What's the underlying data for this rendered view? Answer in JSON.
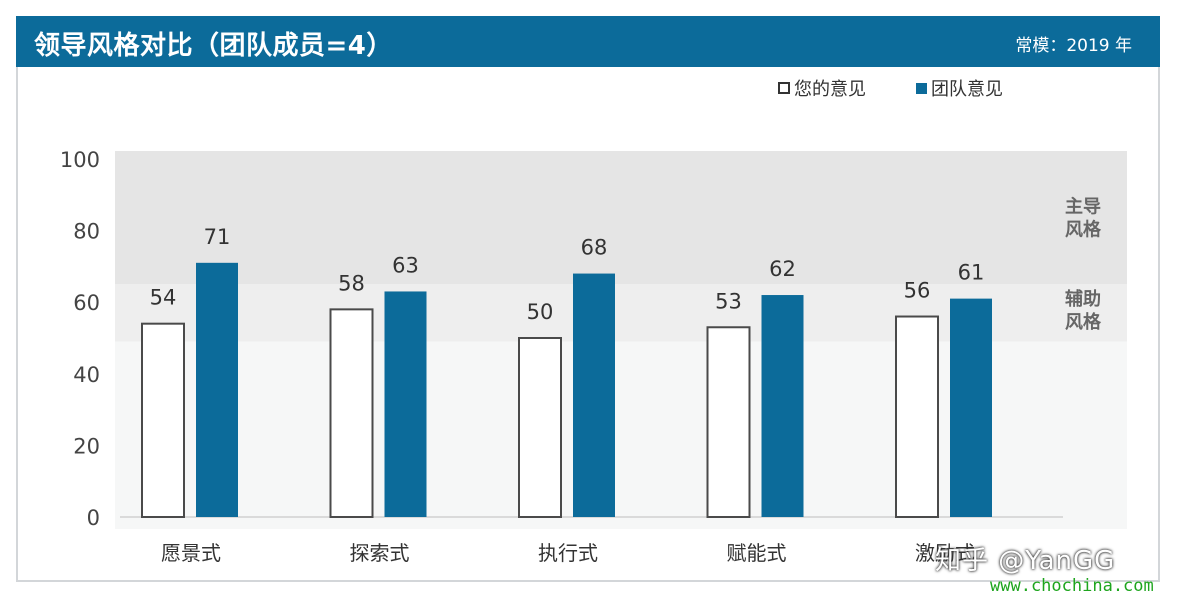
{
  "header": {
    "title": "领导风格对比（团队成员=4）",
    "norm": "常模：2019 年"
  },
  "legend": [
    {
      "label": "您的意见",
      "color": "#ffffff"
    },
    {
      "label": "团队意见",
      "color": "#0c6b9a"
    }
  ],
  "bands": [
    {
      "label_line1": "主导",
      "label_line2": "风格",
      "from": 65,
      "to": 100,
      "color": "#e5e5e5"
    },
    {
      "label_line1": "辅助",
      "label_line2": "风格",
      "from": 49,
      "to": 65,
      "color": "#eeeeee"
    },
    {
      "from": 0,
      "to": 49,
      "color": "#f6f7f7"
    }
  ],
  "chart_data": {
    "type": "bar",
    "title": "领导风格对比（团队成员=4）",
    "categories": [
      "愿景式",
      "探索式",
      "执行式",
      "赋能式",
      "激励式"
    ],
    "series": [
      {
        "name": "您的意见",
        "values": [
          54,
          58,
          50,
          53,
          56
        ],
        "color": "#ffffff"
      },
      {
        "name": "团队意见",
        "values": [
          71,
          63,
          68,
          62,
          61
        ],
        "color": "#0c6b9a"
      }
    ],
    "yticks": [
      0,
      20,
      40,
      60,
      80,
      100
    ],
    "ylim": [
      0,
      100
    ],
    "xlabel": "",
    "ylabel": ""
  },
  "watermark": {
    "text": "知乎 @YanGG",
    "url": "www.chochina.com"
  }
}
